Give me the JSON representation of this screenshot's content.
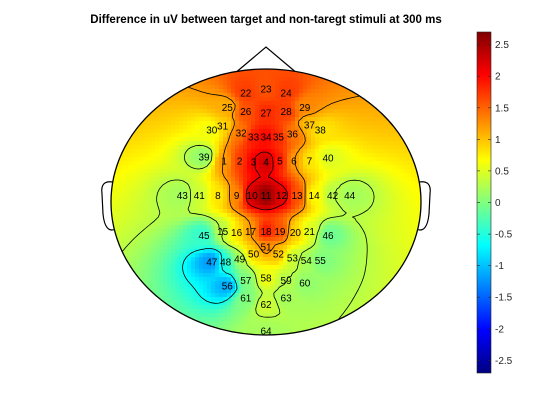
{
  "chart_data": {
    "type": "heatmap",
    "subtype": "scalp-topography",
    "title": "Difference in uV between target and non-taregt stimuli at 300 ms",
    "colormap": "jet",
    "clim": [
      -2.7,
      2.7
    ],
    "colorbar": {
      "ticks": [
        -2.5,
        -2,
        -1.5,
        -1,
        -0.5,
        0,
        0.5,
        1,
        1.5,
        2,
        2.5
      ],
      "tick_labels": [
        "-2.5",
        "-2",
        "-1.5",
        "-1",
        "-0.5",
        "0",
        "0.5",
        "1",
        "1.5",
        "2",
        "2.5"
      ]
    },
    "contour_levels": [
      -1.5,
      -0.6,
      0.3,
      1.2,
      2.1
    ],
    "electrodes": [
      {
        "label": "1",
        "x": -0.27,
        "y": 0.31,
        "value": 1.2
      },
      {
        "label": "2",
        "x": -0.17,
        "y": 0.31,
        "value": 1.7
      },
      {
        "label": "3",
        "x": -0.08,
        "y": 0.3,
        "value": 2.1
      },
      {
        "label": "4",
        "x": 0.0,
        "y": 0.3,
        "value": 2.3
      },
      {
        "label": "5",
        "x": 0.09,
        "y": 0.31,
        "value": 1.9
      },
      {
        "label": "6",
        "x": 0.18,
        "y": 0.31,
        "value": 1.2
      },
      {
        "label": "7",
        "x": 0.28,
        "y": 0.31,
        "value": 0.8
      },
      {
        "label": "8",
        "x": -0.31,
        "y": 0.05,
        "value": 0.8
      },
      {
        "label": "9",
        "x": -0.19,
        "y": 0.05,
        "value": 1.3
      },
      {
        "label": "10",
        "x": -0.09,
        "y": 0.05,
        "value": 2.3
      },
      {
        "label": "11",
        "x": 0.0,
        "y": 0.05,
        "value": 2.6
      },
      {
        "label": "12",
        "x": 0.1,
        "y": 0.05,
        "value": 2.2
      },
      {
        "label": "13",
        "x": 0.2,
        "y": 0.05,
        "value": 1.6
      },
      {
        "label": "14",
        "x": 0.31,
        "y": 0.05,
        "value": 0.7
      },
      {
        "label": "15",
        "x": -0.28,
        "y": -0.22,
        "value": 0.3
      },
      {
        "label": "16",
        "x": -0.19,
        "y": -0.23,
        "value": 0.8
      },
      {
        "label": "17",
        "x": -0.1,
        "y": -0.22,
        "value": 1.2
      },
      {
        "label": "18",
        "x": 0.0,
        "y": -0.22,
        "value": 1.9
      },
      {
        "label": "19",
        "x": 0.09,
        "y": -0.22,
        "value": 1.6
      },
      {
        "label": "20",
        "x": 0.19,
        "y": -0.23,
        "value": 0.9
      },
      {
        "label": "21",
        "x": 0.28,
        "y": -0.22,
        "value": 0.5
      },
      {
        "label": "22",
        "x": -0.13,
        "y": 0.82,
        "value": 1.7
      },
      {
        "label": "23",
        "x": 0.0,
        "y": 0.85,
        "value": 1.6
      },
      {
        "label": "24",
        "x": 0.13,
        "y": 0.82,
        "value": 1.7
      },
      {
        "label": "25",
        "x": -0.25,
        "y": 0.71,
        "value": 1.1
      },
      {
        "label": "26",
        "x": -0.13,
        "y": 0.68,
        "value": 1.6
      },
      {
        "label": "27",
        "x": 0.0,
        "y": 0.67,
        "value": 1.8
      },
      {
        "label": "28",
        "x": 0.13,
        "y": 0.68,
        "value": 1.7
      },
      {
        "label": "29",
        "x": 0.25,
        "y": 0.71,
        "value": 1.3
      },
      {
        "label": "30",
        "x": -0.35,
        "y": 0.54,
        "value": 0.6
      },
      {
        "label": "31",
        "x": -0.28,
        "y": 0.57,
        "value": 0.9
      },
      {
        "label": "32",
        "x": -0.16,
        "y": 0.52,
        "value": 1.4
      },
      {
        "label": "33",
        "x": -0.08,
        "y": 0.49,
        "value": 1.9
      },
      {
        "label": "34",
        "x": 0.0,
        "y": 0.49,
        "value": 2.0
      },
      {
        "label": "35",
        "x": 0.08,
        "y": 0.49,
        "value": 1.8
      },
      {
        "label": "36",
        "x": 0.17,
        "y": 0.51,
        "value": 1.4
      },
      {
        "label": "37",
        "x": 0.28,
        "y": 0.58,
        "value": 1.0
      },
      {
        "label": "38",
        "x": 0.35,
        "y": 0.54,
        "value": 0.8
      },
      {
        "label": "39",
        "x": -0.4,
        "y": 0.34,
        "value": 0.1
      },
      {
        "label": "40",
        "x": 0.4,
        "y": 0.33,
        "value": 0.5
      },
      {
        "label": "41",
        "x": -0.43,
        "y": 0.05,
        "value": 0.4
      },
      {
        "label": "42",
        "x": 0.43,
        "y": 0.05,
        "value": 0.3
      },
      {
        "label": "43",
        "x": -0.54,
        "y": 0.05,
        "value": 0.2
      },
      {
        "label": "44",
        "x": 0.54,
        "y": 0.05,
        "value": 0.2
      },
      {
        "label": "45",
        "x": -0.4,
        "y": -0.25,
        "value": -0.4
      },
      {
        "label": "46",
        "x": 0.4,
        "y": -0.25,
        "value": -0.1
      },
      {
        "label": "47",
        "x": -0.35,
        "y": -0.45,
        "value": -1.2
      },
      {
        "label": "48",
        "x": -0.26,
        "y": -0.45,
        "value": -0.5
      },
      {
        "label": "49",
        "x": -0.17,
        "y": -0.43,
        "value": 0.2
      },
      {
        "label": "50",
        "x": -0.08,
        "y": -0.39,
        "value": 0.9
      },
      {
        "label": "51",
        "x": 0.0,
        "y": -0.34,
        "value": 1.3
      },
      {
        "label": "52",
        "x": 0.08,
        "y": -0.39,
        "value": 1.0
      },
      {
        "label": "53",
        "x": 0.17,
        "y": -0.42,
        "value": 0.4
      },
      {
        "label": "54",
        "x": 0.26,
        "y": -0.44,
        "value": 0.2
      },
      {
        "label": "55",
        "x": 0.35,
        "y": -0.44,
        "value": 0.0
      },
      {
        "label": "56",
        "x": -0.25,
        "y": -0.63,
        "value": -1.1
      },
      {
        "label": "57",
        "x": -0.13,
        "y": -0.59,
        "value": 0.0
      },
      {
        "label": "58",
        "x": 0.0,
        "y": -0.57,
        "value": 0.6
      },
      {
        "label": "59",
        "x": 0.13,
        "y": -0.59,
        "value": 0.3
      },
      {
        "label": "60",
        "x": 0.25,
        "y": -0.61,
        "value": 0.1
      },
      {
        "label": "61",
        "x": -0.13,
        "y": -0.72,
        "value": 0.0
      },
      {
        "label": "62",
        "x": 0.0,
        "y": -0.77,
        "value": 0.4
      },
      {
        "label": "63",
        "x": 0.13,
        "y": -0.72,
        "value": 0.2
      },
      {
        "label": "64",
        "x": 0.0,
        "y": -0.97,
        "value": 0.2
      }
    ]
  }
}
